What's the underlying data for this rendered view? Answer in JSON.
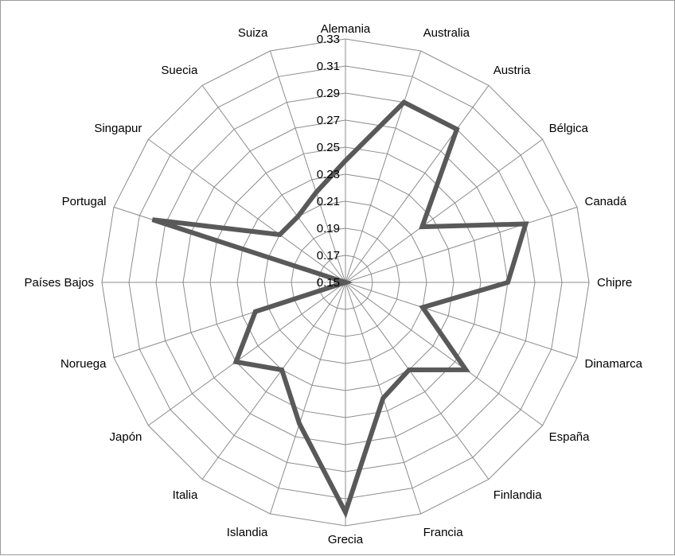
{
  "chart_data": {
    "type": "radar",
    "categories": [
      "Alemania",
      "Australia",
      "Austria",
      "Bélgica",
      "Canadá",
      "Chipre",
      "Dinamarca",
      "España",
      "Finlandia",
      "Francia",
      "Grecia",
      "Islandia",
      "Italia",
      "Japón",
      "Noruega",
      "Países Bajos",
      "Portugal",
      "Singapur",
      "Suecia",
      "Suiza"
    ],
    "values": [
      0.24,
      0.29,
      0.29,
      0.22,
      0.29,
      0.27,
      0.21,
      0.26,
      0.23,
      0.24,
      0.32,
      0.26,
      0.23,
      0.25,
      0.22,
      0.15,
      0.3,
      0.21,
      0.21,
      0.22
    ],
    "tick_labels": [
      "0.15",
      "0.17",
      "0.19",
      "0.21",
      "0.23",
      "0.25",
      "0.27",
      "0.29",
      "0.31",
      "0.33"
    ],
    "rlim": [
      0.15,
      0.33
    ],
    "grid": true,
    "legend": "none",
    "series_color": "#595959",
    "grid_color": "#8c8c8c"
  }
}
